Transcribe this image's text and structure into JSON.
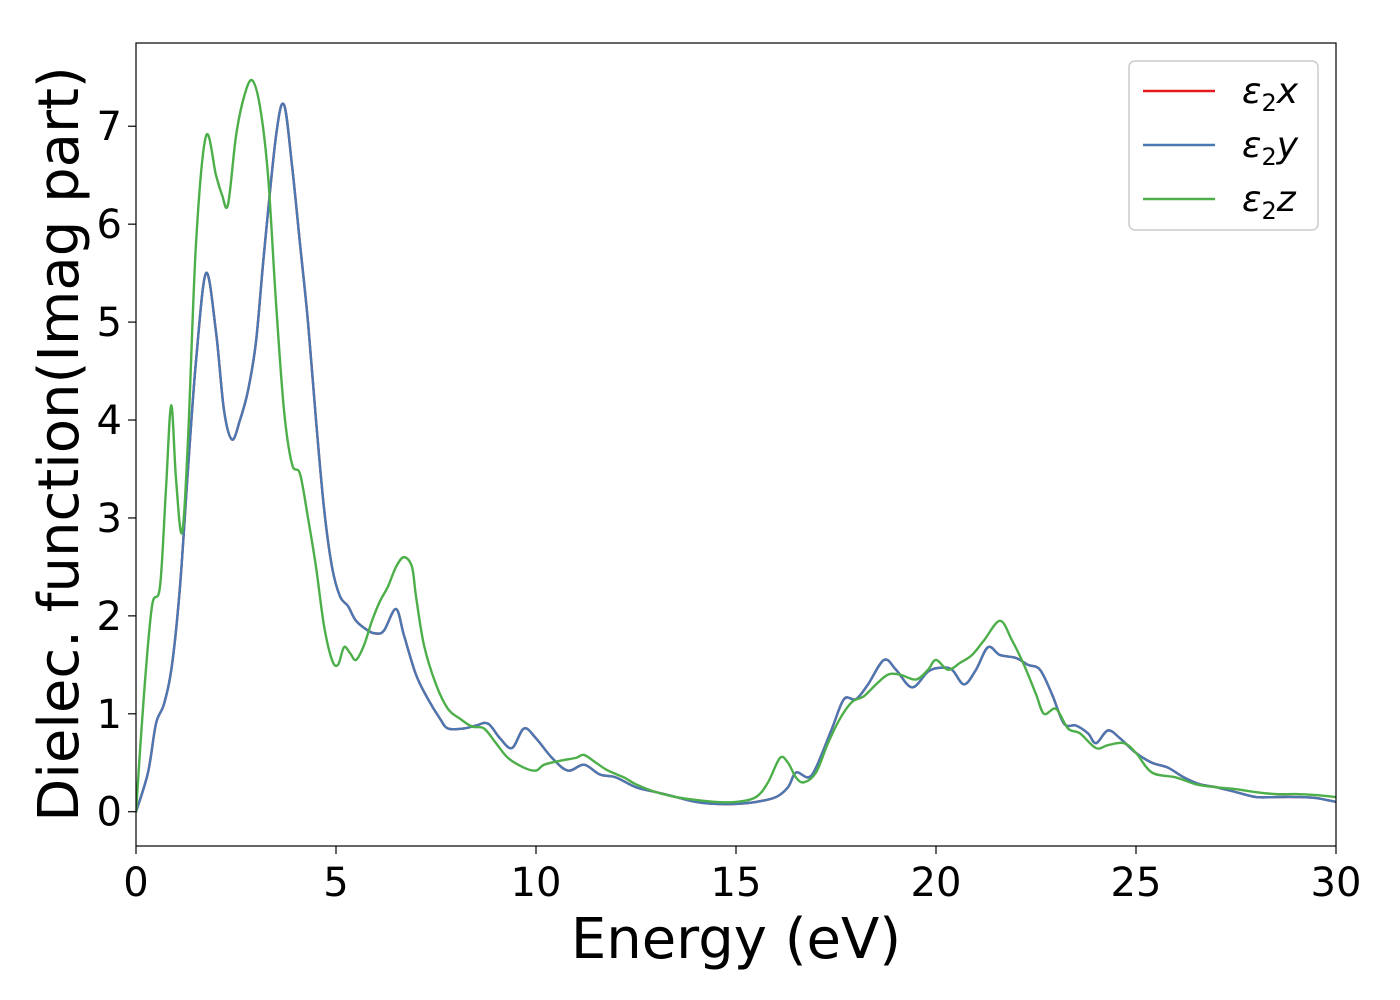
{
  "chart_data": {
    "type": "line",
    "xlabel": "Energy (eV)",
    "ylabel": "Dielec. function(Imag part)",
    "xlim": [
      0,
      30
    ],
    "ylim": [
      -0.35,
      7.85
    ],
    "xticks": [
      "0",
      "5",
      "10",
      "15",
      "20",
      "25",
      "30"
    ],
    "yticks": [
      "0",
      "1",
      "2",
      "3",
      "4",
      "5",
      "6",
      "7"
    ],
    "grid": false,
    "legend_position": "top-right",
    "series": [
      {
        "name": "ε₂x",
        "label_base": "ε",
        "label_sub": "2",
        "label_var": "x",
        "color": "#e41a1c",
        "points": [
          [
            0,
            0
          ],
          [
            0.3,
            0.4
          ],
          [
            0.5,
            0.9
          ],
          [
            0.7,
            1.1
          ],
          [
            0.9,
            1.5
          ],
          [
            1.1,
            2.3
          ],
          [
            1.3,
            3.5
          ],
          [
            1.5,
            4.6
          ],
          [
            1.75,
            5.5
          ],
          [
            2.0,
            4.9
          ],
          [
            2.2,
            4.1
          ],
          [
            2.4,
            3.8
          ],
          [
            2.6,
            4.0
          ],
          [
            2.8,
            4.3
          ],
          [
            3.0,
            4.8
          ],
          [
            3.2,
            5.7
          ],
          [
            3.5,
            6.9
          ],
          [
            3.7,
            7.22
          ],
          [
            3.9,
            6.6
          ],
          [
            4.1,
            5.8
          ],
          [
            4.3,
            5.0
          ],
          [
            4.5,
            4.0
          ],
          [
            4.7,
            3.1
          ],
          [
            4.9,
            2.5
          ],
          [
            5.1,
            2.2
          ],
          [
            5.3,
            2.1
          ],
          [
            5.5,
            1.95
          ],
          [
            5.8,
            1.85
          ],
          [
            6.0,
            1.82
          ],
          [
            6.2,
            1.85
          ],
          [
            6.5,
            2.07
          ],
          [
            6.7,
            1.8
          ],
          [
            7.0,
            1.4
          ],
          [
            7.3,
            1.15
          ],
          [
            7.6,
            0.95
          ],
          [
            7.8,
            0.85
          ],
          [
            8.2,
            0.85
          ],
          [
            8.5,
            0.88
          ],
          [
            8.8,
            0.9
          ],
          [
            9.1,
            0.75
          ],
          [
            9.4,
            0.65
          ],
          [
            9.7,
            0.85
          ],
          [
            10.0,
            0.75
          ],
          [
            10.4,
            0.55
          ],
          [
            10.8,
            0.42
          ],
          [
            11.2,
            0.48
          ],
          [
            11.6,
            0.38
          ],
          [
            12.0,
            0.35
          ],
          [
            12.5,
            0.25
          ],
          [
            13.0,
            0.2
          ],
          [
            13.5,
            0.15
          ],
          [
            14.0,
            0.1
          ],
          [
            14.5,
            0.08
          ],
          [
            15.0,
            0.08
          ],
          [
            15.5,
            0.1
          ],
          [
            16.0,
            0.15
          ],
          [
            16.3,
            0.25
          ],
          [
            16.5,
            0.4
          ],
          [
            16.8,
            0.35
          ],
          [
            17.0,
            0.45
          ],
          [
            17.4,
            0.85
          ],
          [
            17.7,
            1.15
          ],
          [
            18.0,
            1.15
          ],
          [
            18.3,
            1.3
          ],
          [
            18.7,
            1.55
          ],
          [
            19.0,
            1.45
          ],
          [
            19.4,
            1.27
          ],
          [
            19.8,
            1.43
          ],
          [
            20.1,
            1.47
          ],
          [
            20.4,
            1.45
          ],
          [
            20.7,
            1.3
          ],
          [
            21.0,
            1.45
          ],
          [
            21.3,
            1.68
          ],
          [
            21.6,
            1.6
          ],
          [
            22.0,
            1.57
          ],
          [
            22.3,
            1.5
          ],
          [
            22.6,
            1.45
          ],
          [
            22.9,
            1.2
          ],
          [
            23.2,
            0.9
          ],
          [
            23.5,
            0.88
          ],
          [
            23.8,
            0.8
          ],
          [
            24.0,
            0.7
          ],
          [
            24.3,
            0.83
          ],
          [
            24.6,
            0.75
          ],
          [
            25.0,
            0.6
          ],
          [
            25.4,
            0.5
          ],
          [
            25.8,
            0.45
          ],
          [
            26.2,
            0.35
          ],
          [
            26.6,
            0.28
          ],
          [
            27.0,
            0.25
          ],
          [
            27.5,
            0.2
          ],
          [
            28.0,
            0.15
          ],
          [
            28.5,
            0.15
          ],
          [
            29.0,
            0.15
          ],
          [
            29.5,
            0.14
          ],
          [
            30.0,
            0.1
          ]
        ]
      },
      {
        "name": "ε₂y",
        "label_base": "ε",
        "label_sub": "2",
        "label_var": "y",
        "color": "#4a78b2",
        "points": [
          [
            0,
            0
          ],
          [
            0.3,
            0.4
          ],
          [
            0.5,
            0.9
          ],
          [
            0.7,
            1.1
          ],
          [
            0.9,
            1.5
          ],
          [
            1.1,
            2.3
          ],
          [
            1.3,
            3.5
          ],
          [
            1.5,
            4.6
          ],
          [
            1.75,
            5.5
          ],
          [
            2.0,
            4.9
          ],
          [
            2.2,
            4.1
          ],
          [
            2.4,
            3.8
          ],
          [
            2.6,
            4.0
          ],
          [
            2.8,
            4.3
          ],
          [
            3.0,
            4.8
          ],
          [
            3.2,
            5.7
          ],
          [
            3.5,
            6.9
          ],
          [
            3.7,
            7.22
          ],
          [
            3.9,
            6.6
          ],
          [
            4.1,
            5.8
          ],
          [
            4.3,
            5.0
          ],
          [
            4.5,
            4.0
          ],
          [
            4.7,
            3.1
          ],
          [
            4.9,
            2.5
          ],
          [
            5.1,
            2.2
          ],
          [
            5.3,
            2.1
          ],
          [
            5.5,
            1.95
          ],
          [
            5.8,
            1.85
          ],
          [
            6.0,
            1.82
          ],
          [
            6.2,
            1.85
          ],
          [
            6.5,
            2.07
          ],
          [
            6.7,
            1.8
          ],
          [
            7.0,
            1.4
          ],
          [
            7.3,
            1.15
          ],
          [
            7.6,
            0.95
          ],
          [
            7.8,
            0.85
          ],
          [
            8.2,
            0.85
          ],
          [
            8.5,
            0.88
          ],
          [
            8.8,
            0.9
          ],
          [
            9.1,
            0.75
          ],
          [
            9.4,
            0.65
          ],
          [
            9.7,
            0.85
          ],
          [
            10.0,
            0.75
          ],
          [
            10.4,
            0.55
          ],
          [
            10.8,
            0.42
          ],
          [
            11.2,
            0.48
          ],
          [
            11.6,
            0.38
          ],
          [
            12.0,
            0.35
          ],
          [
            12.5,
            0.25
          ],
          [
            13.0,
            0.2
          ],
          [
            13.5,
            0.15
          ],
          [
            14.0,
            0.1
          ],
          [
            14.5,
            0.08
          ],
          [
            15.0,
            0.08
          ],
          [
            15.5,
            0.1
          ],
          [
            16.0,
            0.15
          ],
          [
            16.3,
            0.25
          ],
          [
            16.5,
            0.4
          ],
          [
            16.8,
            0.35
          ],
          [
            17.0,
            0.45
          ],
          [
            17.4,
            0.85
          ],
          [
            17.7,
            1.15
          ],
          [
            18.0,
            1.15
          ],
          [
            18.3,
            1.3
          ],
          [
            18.7,
            1.55
          ],
          [
            19.0,
            1.45
          ],
          [
            19.4,
            1.27
          ],
          [
            19.8,
            1.43
          ],
          [
            20.1,
            1.47
          ],
          [
            20.4,
            1.45
          ],
          [
            20.7,
            1.3
          ],
          [
            21.0,
            1.45
          ],
          [
            21.3,
            1.68
          ],
          [
            21.6,
            1.6
          ],
          [
            22.0,
            1.57
          ],
          [
            22.3,
            1.5
          ],
          [
            22.6,
            1.45
          ],
          [
            22.9,
            1.2
          ],
          [
            23.2,
            0.9
          ],
          [
            23.5,
            0.88
          ],
          [
            23.8,
            0.8
          ],
          [
            24.0,
            0.7
          ],
          [
            24.3,
            0.83
          ],
          [
            24.6,
            0.75
          ],
          [
            25.0,
            0.6
          ],
          [
            25.4,
            0.5
          ],
          [
            25.8,
            0.45
          ],
          [
            26.2,
            0.35
          ],
          [
            26.6,
            0.28
          ],
          [
            27.0,
            0.25
          ],
          [
            27.5,
            0.2
          ],
          [
            28.0,
            0.15
          ],
          [
            28.5,
            0.15
          ],
          [
            29.0,
            0.15
          ],
          [
            29.5,
            0.14
          ],
          [
            30.0,
            0.1
          ]
        ]
      },
      {
        "name": "ε₂z",
        "label_base": "ε",
        "label_sub": "2",
        "label_var": "z",
        "color": "#4daf4a",
        "points": [
          [
            0,
            0
          ],
          [
            0.2,
            1.2
          ],
          [
            0.4,
            2.1
          ],
          [
            0.6,
            2.3
          ],
          [
            0.75,
            3.3
          ],
          [
            0.88,
            4.15
          ],
          [
            1.0,
            3.4
          ],
          [
            1.15,
            2.85
          ],
          [
            1.3,
            3.8
          ],
          [
            1.5,
            5.8
          ],
          [
            1.75,
            6.9
          ],
          [
            2.0,
            6.5
          ],
          [
            2.15,
            6.3
          ],
          [
            2.3,
            6.2
          ],
          [
            2.5,
            6.9
          ],
          [
            2.7,
            7.3
          ],
          [
            2.9,
            7.47
          ],
          [
            3.1,
            7.2
          ],
          [
            3.3,
            6.5
          ],
          [
            3.5,
            5.2
          ],
          [
            3.7,
            4.1
          ],
          [
            3.9,
            3.55
          ],
          [
            4.1,
            3.45
          ],
          [
            4.3,
            3.0
          ],
          [
            4.5,
            2.5
          ],
          [
            4.7,
            1.9
          ],
          [
            4.9,
            1.55
          ],
          [
            5.05,
            1.5
          ],
          [
            5.2,
            1.68
          ],
          [
            5.35,
            1.62
          ],
          [
            5.5,
            1.55
          ],
          [
            5.7,
            1.7
          ],
          [
            5.9,
            1.95
          ],
          [
            6.1,
            2.15
          ],
          [
            6.3,
            2.3
          ],
          [
            6.5,
            2.5
          ],
          [
            6.7,
            2.6
          ],
          [
            6.9,
            2.5
          ],
          [
            7.0,
            2.2
          ],
          [
            7.2,
            1.7
          ],
          [
            7.5,
            1.3
          ],
          [
            7.8,
            1.05
          ],
          [
            8.1,
            0.95
          ],
          [
            8.4,
            0.87
          ],
          [
            8.7,
            0.85
          ],
          [
            9.0,
            0.7
          ],
          [
            9.3,
            0.55
          ],
          [
            9.7,
            0.45
          ],
          [
            10.0,
            0.42
          ],
          [
            10.2,
            0.48
          ],
          [
            10.6,
            0.52
          ],
          [
            11.0,
            0.55
          ],
          [
            11.2,
            0.58
          ],
          [
            11.5,
            0.5
          ],
          [
            11.8,
            0.42
          ],
          [
            12.2,
            0.35
          ],
          [
            12.5,
            0.28
          ],
          [
            13.0,
            0.2
          ],
          [
            13.5,
            0.15
          ],
          [
            14.0,
            0.12
          ],
          [
            14.5,
            0.1
          ],
          [
            15.0,
            0.1
          ],
          [
            15.5,
            0.15
          ],
          [
            15.8,
            0.3
          ],
          [
            16.1,
            0.55
          ],
          [
            16.3,
            0.5
          ],
          [
            16.5,
            0.35
          ],
          [
            16.7,
            0.3
          ],
          [
            17.0,
            0.4
          ],
          [
            17.3,
            0.7
          ],
          [
            17.6,
            0.95
          ],
          [
            17.9,
            1.12
          ],
          [
            18.2,
            1.18
          ],
          [
            18.5,
            1.3
          ],
          [
            18.8,
            1.4
          ],
          [
            19.1,
            1.4
          ],
          [
            19.5,
            1.35
          ],
          [
            19.8,
            1.45
          ],
          [
            20.0,
            1.55
          ],
          [
            20.3,
            1.45
          ],
          [
            20.6,
            1.52
          ],
          [
            20.9,
            1.6
          ],
          [
            21.2,
            1.75
          ],
          [
            21.6,
            1.95
          ],
          [
            21.9,
            1.75
          ],
          [
            22.2,
            1.5
          ],
          [
            22.5,
            1.2
          ],
          [
            22.7,
            1.0
          ],
          [
            23.0,
            1.05
          ],
          [
            23.3,
            0.85
          ],
          [
            23.6,
            0.8
          ],
          [
            24.0,
            0.65
          ],
          [
            24.3,
            0.68
          ],
          [
            24.7,
            0.7
          ],
          [
            25.0,
            0.6
          ],
          [
            25.4,
            0.4
          ],
          [
            26.0,
            0.35
          ],
          [
            26.5,
            0.28
          ],
          [
            27.0,
            0.25
          ],
          [
            27.5,
            0.23
          ],
          [
            28.0,
            0.2
          ],
          [
            28.5,
            0.18
          ],
          [
            29.0,
            0.18
          ],
          [
            29.5,
            0.17
          ],
          [
            30.0,
            0.15
          ]
        ]
      }
    ]
  }
}
